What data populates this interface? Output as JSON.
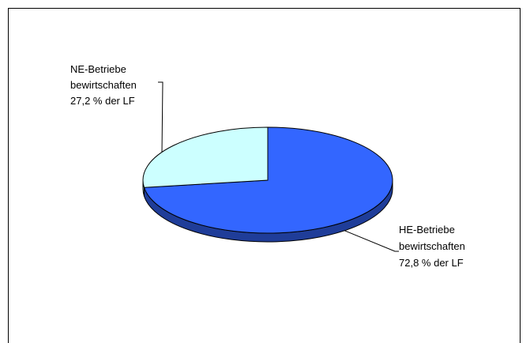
{
  "chart_data": {
    "type": "pie",
    "style": "3d",
    "slices": [
      {
        "label_lines": [
          "HE-Betriebe",
          "bewirtschaften",
          "72,8 % der LF"
        ],
        "value": 72.8,
        "color": "#3366ff",
        "side_color": "#1f3d99"
      },
      {
        "label_lines": [
          "NE-Betriebe",
          "bewirtschaften",
          "27,2 % der LF"
        ],
        "value": 27.2,
        "color": "#ccffff",
        "side_color": "#99cccc"
      }
    ]
  }
}
